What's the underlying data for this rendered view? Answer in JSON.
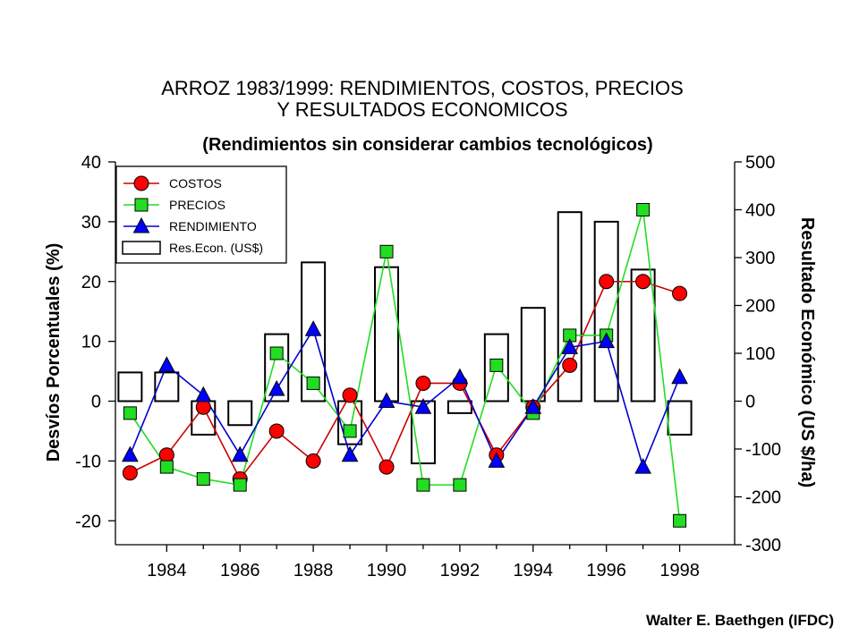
{
  "chart_data": {
    "type": "line",
    "title": [
      "ARROZ 1983/1999:  RENDIMIENTOS, COSTOS, PRECIOS",
      "Y RESULTADOS ECONOMICOS"
    ],
    "subtitle": "(Rendimientos sin considerar cambios tecnológicos)",
    "ylabel": "Desvíos Porcentuales (%)",
    "y2label": "Resultado Económico (US $/ha)",
    "xlim": [
      1982.6,
      1999.5
    ],
    "ylim": [
      -24,
      40
    ],
    "y2lim": [
      -300,
      500
    ],
    "x_ticks": [
      "1984",
      "1986",
      "1988",
      "1990",
      "1992",
      "1994",
      "1996",
      "1998"
    ],
    "y_ticks": [
      "40",
      "30",
      "20",
      "10",
      "0",
      "-10",
      "-20"
    ],
    "y2_ticks": [
      "500",
      "400",
      "300",
      "200",
      "100",
      "0",
      "-100",
      "-200",
      "-300"
    ],
    "x": [
      1983,
      1984,
      1985,
      1986,
      1987,
      1988,
      1989,
      1990,
      1991,
      1992,
      1993,
      1994,
      1995,
      1996,
      1997,
      1998
    ],
    "series": [
      {
        "name": "COSTOS",
        "marker": "circle",
        "color": "#ff0000",
        "line_color": "#cc0000",
        "values": [
          -12,
          -9,
          -1,
          -13,
          -5,
          -10,
          1,
          -11,
          3,
          3,
          -9,
          -1,
          6,
          20,
          20,
          18
        ]
      },
      {
        "name": "PRECIOS",
        "marker": "square",
        "color": "#22dd22",
        "line_color": "#22dd22",
        "values": [
          -2,
          -11,
          -13,
          -14,
          8,
          3,
          -5,
          25,
          -14,
          -14,
          6,
          -2,
          11,
          11,
          32,
          -20
        ]
      },
      {
        "name": "RENDIMIENTO",
        "marker": "triangle",
        "color": "#0000ff",
        "line_color": "#0000cc",
        "values": [
          -9,
          6,
          1,
          -9,
          2,
          12,
          -9,
          0,
          -1,
          4,
          -10,
          -1,
          9,
          10,
          -11,
          4
        ]
      },
      {
        "name": "Res.Econ. (US$)",
        "marker": "bar",
        "axis": "right",
        "values": [
          60,
          60,
          -70,
          -50,
          140,
          290,
          -90,
          280,
          -130,
          -25,
          140,
          195,
          395,
          375,
          275,
          -70
        ]
      }
    ],
    "legend_position": "top-left"
  },
  "credit": "Walter E.  Baethgen (IFDC)"
}
